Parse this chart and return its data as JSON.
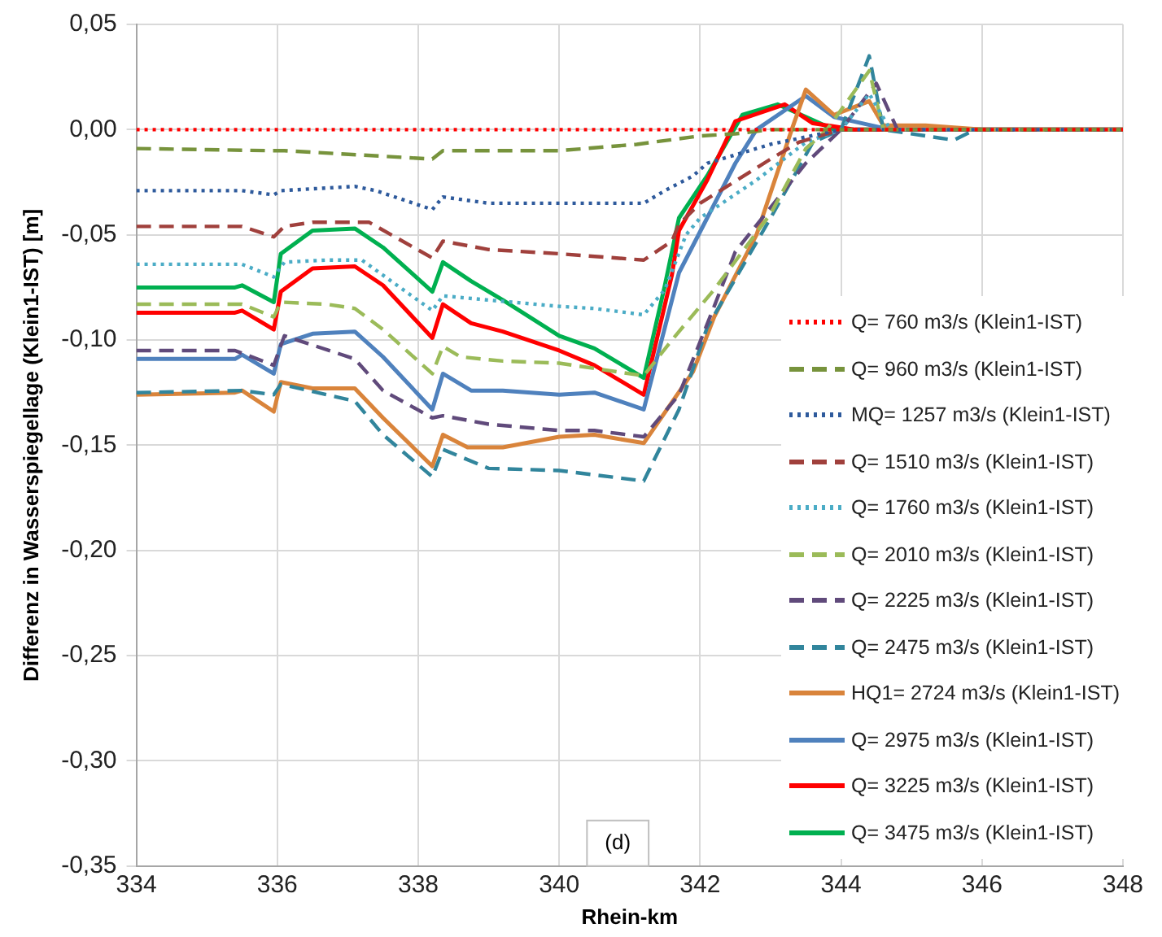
{
  "chart_data": {
    "type": "line",
    "xlabel": "Rhein-km",
    "ylabel": "Differenz in Wasserspiegellage (Klein1-IST) [m]",
    "xlim": [
      334,
      348
    ],
    "xticks": [
      334,
      336,
      338,
      340,
      342,
      344,
      346,
      348
    ],
    "ylim": [
      -0.35,
      0.05
    ],
    "yticks": [
      {
        "value": -0.35,
        "label": "-0,35"
      },
      {
        "value": -0.3,
        "label": "-0,30"
      },
      {
        "value": -0.25,
        "label": "-0,25"
      },
      {
        "value": -0.2,
        "label": "-0,20"
      },
      {
        "value": -0.15,
        "label": "-0,15"
      },
      {
        "value": -0.1,
        "label": "-0,10"
      },
      {
        "value": -0.05,
        "label": "-0,05"
      },
      {
        "value": 0,
        "label": "0,00"
      },
      {
        "value": 0.05,
        "label": "0,05"
      }
    ],
    "grid": true,
    "legend": "bottom right",
    "marker": "none",
    "annotations": [
      "(d)"
    ],
    "series": [
      {
        "name": "Q= 760 m3/s (Klein1-IST)",
        "color": "#ff0000",
        "line_style": "dotted",
        "x": [
          334,
          348
        ],
        "values": [
          0,
          0
        ]
      },
      {
        "name": "Q= 960 m3/s (Klein1-IST)",
        "color": "#77933c",
        "line_style": "dashed",
        "x": [
          334,
          335.9,
          336.1,
          338.2,
          338.35,
          340,
          341.1,
          342,
          342.5,
          343,
          348
        ],
        "values": [
          -0.009,
          -0.01,
          -0.01,
          -0.014,
          -0.01,
          -0.01,
          -0.007,
          -0.003,
          -0.002,
          0,
          0
        ]
      },
      {
        "name": "MQ= 1257 m3/s (Klein1-IST)",
        "color": "#2e5a9c",
        "line_style": "dotted",
        "x": [
          334,
          335.5,
          335.95,
          336.05,
          337.1,
          337.4,
          338.2,
          338.35,
          339,
          340,
          341.2,
          341.5,
          341.9,
          342.1,
          343,
          344,
          348
        ],
        "values": [
          -0.029,
          -0.029,
          -0.031,
          -0.029,
          -0.027,
          -0.029,
          -0.038,
          -0.032,
          -0.035,
          -0.035,
          -0.035,
          -0.029,
          -0.022,
          -0.016,
          -0.007,
          0,
          0
        ]
      },
      {
        "name": "Q= 1510 m3/s (Klein1-IST)",
        "color": "#a0403c",
        "line_style": "dashed",
        "x": [
          334,
          335.5,
          335.95,
          336.1,
          336.5,
          337.3,
          338.2,
          338.35,
          339,
          340,
          341.2,
          341.6,
          341.7,
          342,
          343,
          343.4,
          344,
          348
        ],
        "values": [
          -0.046,
          -0.046,
          -0.051,
          -0.046,
          -0.044,
          -0.044,
          -0.061,
          -0.053,
          -0.057,
          -0.059,
          -0.062,
          -0.053,
          -0.045,
          -0.035,
          -0.014,
          -0.006,
          0,
          0
        ]
      },
      {
        "name": "Q= 1760 m3/s (Klein1-IST)",
        "color": "#4bacc6",
        "line_style": "dotted",
        "x": [
          334,
          335.5,
          335.95,
          336.1,
          336.7,
          337.2,
          338.2,
          338.35,
          339,
          340,
          340.5,
          341.2,
          341.5,
          341.8,
          342,
          342.8,
          343.5,
          344,
          344.4,
          344.7,
          348
        ],
        "values": [
          -0.064,
          -0.064,
          -0.07,
          -0.063,
          -0.062,
          -0.062,
          -0.086,
          -0.079,
          -0.081,
          -0.084,
          -0.085,
          -0.088,
          -0.076,
          -0.05,
          -0.042,
          -0.024,
          -0.006,
          0,
          0.017,
          0,
          0
        ]
      },
      {
        "name": "Q= 2010 m3/s (Klein1-IST)",
        "color": "#9bbb59",
        "line_style": "dashed",
        "x": [
          334,
          335.5,
          335.95,
          336.05,
          336.7,
          337.1,
          337.5,
          338.2,
          338.35,
          338.6,
          339.2,
          340,
          341.2,
          341.6,
          342.2,
          343,
          343.5,
          343.8,
          344.4,
          344.6,
          348
        ],
        "values": [
          -0.083,
          -0.083,
          -0.089,
          -0.082,
          -0.083,
          -0.085,
          -0.095,
          -0.116,
          -0.103,
          -0.108,
          -0.11,
          -0.111,
          -0.117,
          -0.1,
          -0.076,
          -0.04,
          -0.009,
          0,
          0.028,
          0,
          0
        ]
      },
      {
        "name": "Q= 2225 m3/s (Klein1-IST)",
        "color": "#604a7b",
        "line_style": "dashed",
        "x": [
          334,
          335.4,
          335.95,
          336.1,
          337.1,
          337.5,
          338.2,
          338.35,
          339,
          340,
          340.5,
          341.2,
          341.7,
          342.2,
          342.5,
          343.5,
          344,
          344.5,
          344.8,
          348
        ],
        "values": [
          -0.105,
          -0.105,
          -0.112,
          -0.098,
          -0.109,
          -0.124,
          -0.137,
          -0.136,
          -0.14,
          -0.143,
          -0.143,
          -0.146,
          -0.126,
          -0.084,
          -0.058,
          -0.016,
          0,
          0.022,
          0,
          0
        ]
      },
      {
        "name": "Q= 2475 m3/s (Klein1-IST)",
        "color": "#31859c",
        "line_style": "dashed",
        "x": [
          334,
          335.5,
          335.95,
          336.05,
          337.1,
          337.5,
          338.2,
          338.35,
          339,
          340,
          341.2,
          341.7,
          342.1,
          343,
          343.6,
          344,
          344.4,
          344.6,
          345.6,
          345.9,
          348
        ],
        "values": [
          -0.125,
          -0.124,
          -0.126,
          -0.121,
          -0.129,
          -0.145,
          -0.165,
          -0.152,
          -0.161,
          -0.162,
          -0.167,
          -0.133,
          -0.094,
          -0.042,
          -0.006,
          0,
          0.035,
          0,
          -0.005,
          0,
          0
        ]
      },
      {
        "name": "HQ1= 2724 m3/s (Klein1-IST)",
        "color": "#d9843b",
        "line_style": "solid",
        "x": [
          334,
          335.4,
          335.5,
          335.95,
          336.05,
          336.5,
          337.1,
          337.5,
          338.2,
          338.35,
          338.7,
          339.2,
          340,
          340.5,
          341.2,
          341.9,
          342.2,
          342.8,
          343.3,
          343.5,
          343.9,
          344.4,
          344.6,
          345.2,
          346,
          348
        ],
        "values": [
          -0.126,
          -0.125,
          -0.124,
          -0.134,
          -0.12,
          -0.123,
          -0.123,
          -0.137,
          -0.16,
          -0.145,
          -0.151,
          -0.151,
          -0.146,
          -0.145,
          -0.149,
          -0.115,
          -0.089,
          -0.05,
          0,
          0.019,
          0.007,
          0.0135,
          0.002,
          0.002,
          0,
          0
        ]
      },
      {
        "name": "Q= 2975 m3/s (Klein1-IST)",
        "color": "#4f81bd",
        "line_style": "solid",
        "x": [
          334,
          335.4,
          335.5,
          335.95,
          336.05,
          336.5,
          337.1,
          337.5,
          338.2,
          338.35,
          338.75,
          339.2,
          340,
          340.5,
          341.2,
          341.7,
          342.1,
          342.5,
          342.8,
          343.5,
          343.9,
          344.7,
          348
        ],
        "values": [
          -0.109,
          -0.109,
          -0.107,
          -0.116,
          -0.102,
          -0.097,
          -0.096,
          -0.108,
          -0.133,
          -0.116,
          -0.124,
          -0.124,
          -0.126,
          -0.125,
          -0.133,
          -0.068,
          -0.042,
          -0.016,
          0,
          0.016,
          0.006,
          0,
          0
        ]
      },
      {
        "name": "Q= 3225 m3/s (Klein1-IST)",
        "color": "#ff0000",
        "line_style": "solid",
        "x": [
          334,
          335.4,
          335.5,
          335.95,
          336.05,
          336.5,
          337.1,
          337.5,
          338.2,
          338.35,
          338.75,
          339.2,
          340,
          340.5,
          341.2,
          341.6,
          341.7,
          342.1,
          342.5,
          343.2,
          343.6,
          344.2,
          348
        ],
        "values": [
          -0.087,
          -0.087,
          -0.086,
          -0.095,
          -0.077,
          -0.066,
          -0.065,
          -0.074,
          -0.099,
          -0.083,
          -0.092,
          -0.096,
          -0.105,
          -0.112,
          -0.126,
          -0.069,
          -0.048,
          -0.024,
          0.004,
          0.012,
          0.003,
          0,
          0
        ]
      },
      {
        "name": "Q= 3475 m3/s (Klein1-IST)",
        "color": "#00b050",
        "line_style": "solid",
        "x": [
          334,
          335.4,
          335.5,
          335.95,
          336.05,
          336.5,
          337.1,
          337.5,
          338.2,
          338.35,
          338.75,
          339.2,
          340,
          340.5,
          341.2,
          341.5,
          341.7,
          342.1,
          342.6,
          343.1,
          343.5,
          343.9,
          348
        ],
        "values": [
          -0.075,
          -0.075,
          -0.074,
          -0.082,
          -0.059,
          -0.048,
          -0.047,
          -0.056,
          -0.077,
          -0.063,
          -0.072,
          -0.081,
          -0.098,
          -0.104,
          -0.118,
          -0.074,
          -0.042,
          -0.022,
          0.007,
          0.012,
          0.006,
          0,
          0
        ]
      }
    ]
  }
}
